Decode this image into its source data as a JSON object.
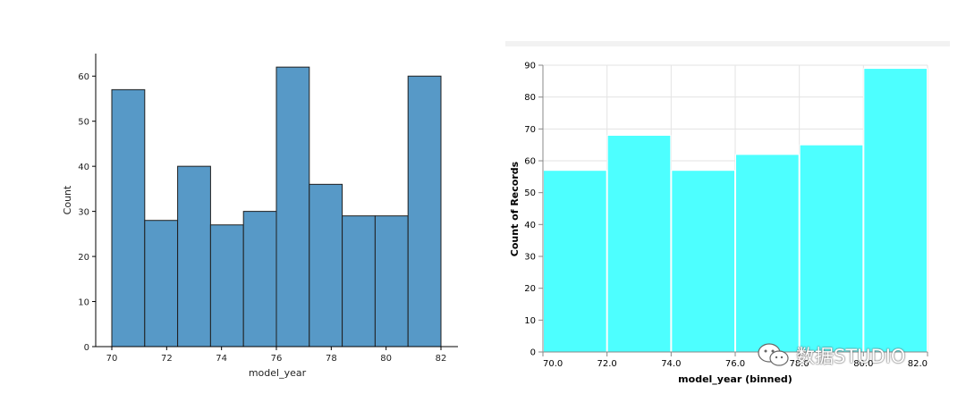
{
  "chart_data": [
    {
      "type": "bar",
      "xlabel": "model_year",
      "ylabel": "Count",
      "xlim": [
        70,
        82
      ],
      "ylim": [
        0,
        65
      ],
      "xticks": [
        "70",
        "72",
        "74",
        "76",
        "78",
        "80",
        "82"
      ],
      "yticks": [
        "0",
        "10",
        "20",
        "30",
        "40",
        "50",
        "60"
      ],
      "bin_edges": [
        70,
        71.2,
        72.4,
        73.6,
        74.8,
        76,
        77.2,
        78.4,
        79.6,
        80.8,
        82
      ],
      "values": [
        57,
        28,
        40,
        27,
        30,
        62,
        36,
        29,
        29,
        60
      ],
      "color": "#5799c7",
      "edge_color": "#1f1f1f",
      "grid": false
    },
    {
      "type": "bar",
      "xlabel": "model_year (binned)",
      "ylabel": "Count of Records",
      "xlim": [
        70,
        82
      ],
      "ylim": [
        0,
        90
      ],
      "xticks": [
        "70.0",
        "72.0",
        "74.0",
        "76.0",
        "78.0",
        "80.0",
        "82.0"
      ],
      "yticks": [
        "0",
        "10",
        "20",
        "30",
        "40",
        "50",
        "60",
        "70",
        "80",
        "90"
      ],
      "bin_edges": [
        70,
        72,
        74,
        76,
        78,
        80,
        82
      ],
      "values": [
        57,
        68,
        57,
        62,
        65,
        89
      ],
      "color": "#4dffff",
      "grid": true
    }
  ],
  "watermark": {
    "text": "数据STUDIO",
    "icon": "wechat-icon"
  }
}
